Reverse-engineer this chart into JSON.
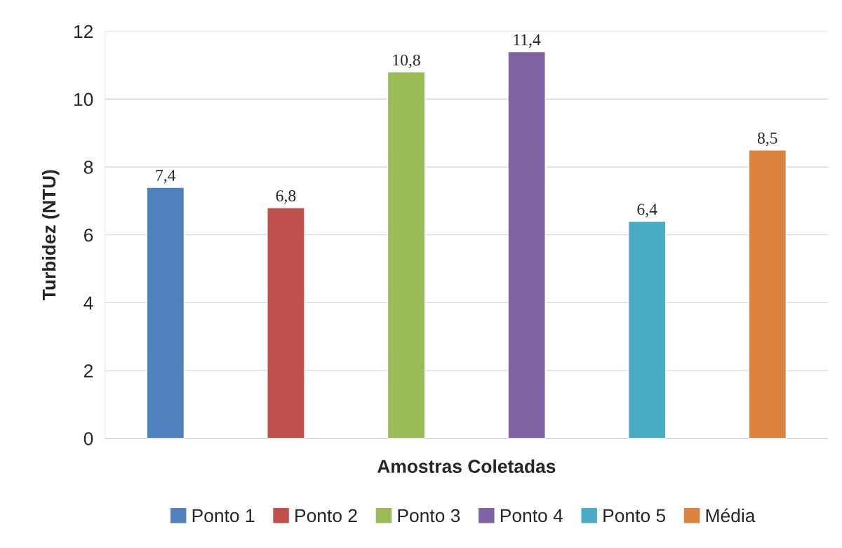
{
  "chart_data": {
    "type": "bar",
    "xlabel": "Amostras Coletadas",
    "ylabel": "Turbidez (NTU)",
    "categories": [
      null
    ],
    "series": [
      {
        "name": "Ponto 1",
        "color": "#4f81bd",
        "values": [
          7.4
        ],
        "value_labels": [
          "7,4"
        ]
      },
      {
        "name": "Ponto 2",
        "color": "#c0504d",
        "values": [
          6.8
        ],
        "value_labels": [
          "6,8"
        ]
      },
      {
        "name": "Ponto 3",
        "color": "#9bbb59",
        "values": [
          10.8
        ],
        "value_labels": [
          "10,8"
        ]
      },
      {
        "name": "Ponto 4",
        "color": "#8064a2",
        "values": [
          11.4
        ],
        "value_labels": [
          "11,4"
        ]
      },
      {
        "name": "Ponto 5",
        "color": "#4bacc6",
        "values": [
          6.4
        ],
        "value_labels": [
          "6,4"
        ]
      },
      {
        "name": "Média",
        "color": "#dc843f",
        "values": [
          8.5
        ],
        "value_labels": [
          "8,5"
        ]
      }
    ],
    "ylim": [
      0,
      12
    ],
    "yticks": [
      0,
      2,
      4,
      6,
      8,
      10,
      12
    ],
    "grid": "y",
    "legend": "bottom"
  }
}
